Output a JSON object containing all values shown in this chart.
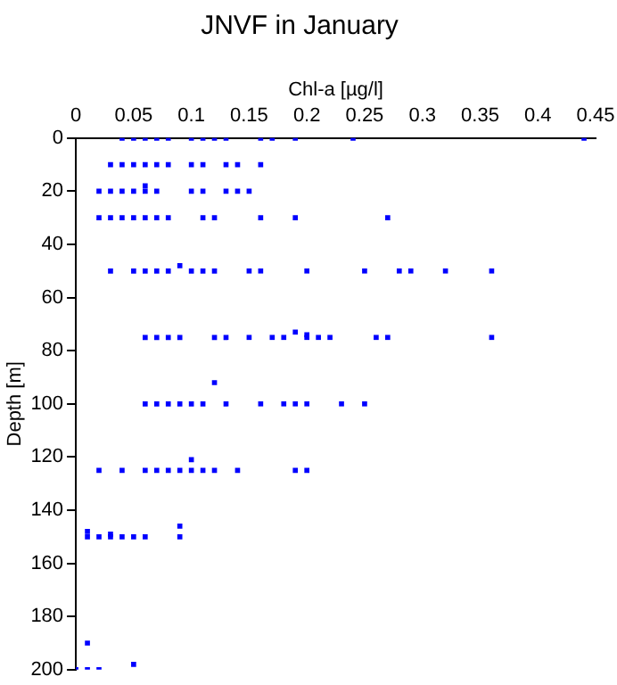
{
  "chart_data": {
    "type": "scatter",
    "title": "JNVF in January",
    "xlabel": "Chl-a [µg/l]",
    "ylabel": "Depth [m]",
    "x": [
      0.04,
      0.05,
      0.06,
      0.07,
      0.08,
      0.1,
      0.11,
      0.12,
      0.13,
      0.16,
      0.17,
      0.19,
      0.24,
      0.44,
      0.03,
      0.04,
      0.05,
      0.06,
      0.07,
      0.08,
      0.1,
      0.11,
      0.13,
      0.14,
      0.16,
      0.02,
      0.03,
      0.04,
      0.05,
      0.06,
      0.07,
      0.1,
      0.11,
      0.13,
      0.14,
      0.15,
      0.06,
      0.02,
      0.03,
      0.04,
      0.05,
      0.06,
      0.07,
      0.08,
      0.11,
      0.12,
      0.16,
      0.19,
      0.27,
      0.03,
      0.05,
      0.06,
      0.07,
      0.08,
      0.1,
      0.11,
      0.12,
      0.15,
      0.16,
      0.2,
      0.09,
      0.25,
      0.28,
      0.29,
      0.32,
      0.36,
      0.06,
      0.07,
      0.08,
      0.09,
      0.12,
      0.13,
      0.15,
      0.17,
      0.18,
      0.2,
      0.21,
      0.22,
      0.19,
      0.2,
      0.26,
      0.27,
      0.36,
      0.12,
      0.06,
      0.07,
      0.08,
      0.09,
      0.1,
      0.11,
      0.13,
      0.16,
      0.18,
      0.19,
      0.2,
      0.23,
      0.25,
      0.02,
      0.04,
      0.06,
      0.07,
      0.08,
      0.09,
      0.1,
      0.11,
      0.12,
      0.14,
      0.19,
      0.2,
      0.1,
      0.01,
      0.02,
      0.03,
      0.04,
      0.05,
      0.06,
      0.01,
      0.03,
      0.09,
      0.09,
      0.01,
      0.0,
      0.01,
      0.02,
      0.05
    ],
    "values": [
      0,
      0,
      0,
      0,
      0,
      0,
      0,
      0,
      0,
      0,
      0,
      0,
      0,
      0,
      10,
      10,
      10,
      10,
      10,
      10,
      10,
      10,
      10,
      10,
      10,
      20,
      20,
      20,
      20,
      20,
      20,
      20,
      20,
      20,
      20,
      20,
      18,
      30,
      30,
      30,
      30,
      30,
      30,
      30,
      30,
      30,
      30,
      30,
      30,
      50,
      50,
      50,
      50,
      50,
      50,
      50,
      50,
      50,
      50,
      50,
      48,
      50,
      50,
      50,
      50,
      50,
      75,
      75,
      75,
      75,
      75,
      75,
      75,
      75,
      75,
      75,
      75,
      75,
      73,
      74,
      75,
      75,
      75,
      92,
      100,
      100,
      100,
      100,
      100,
      100,
      100,
      100,
      100,
      100,
      100,
      100,
      100,
      125,
      125,
      125,
      125,
      125,
      125,
      125,
      125,
      125,
      125,
      125,
      125,
      121,
      150,
      150,
      150,
      150,
      150,
      150,
      148,
      149,
      150,
      146,
      190,
      200,
      200,
      200,
      198
    ],
    "color": "#0000ff",
    "marker": "square",
    "xlim": [
      0,
      0.45
    ],
    "xticks": [
      0,
      0.05,
      0.1,
      0.15,
      0.2,
      0.25,
      0.3,
      0.35,
      0.4,
      0.45
    ],
    "ylim": [
      200,
      0
    ],
    "yticks": [
      0,
      20,
      40,
      60,
      80,
      100,
      120,
      140,
      160,
      180,
      200
    ],
    "grid": false,
    "legend": false
  }
}
